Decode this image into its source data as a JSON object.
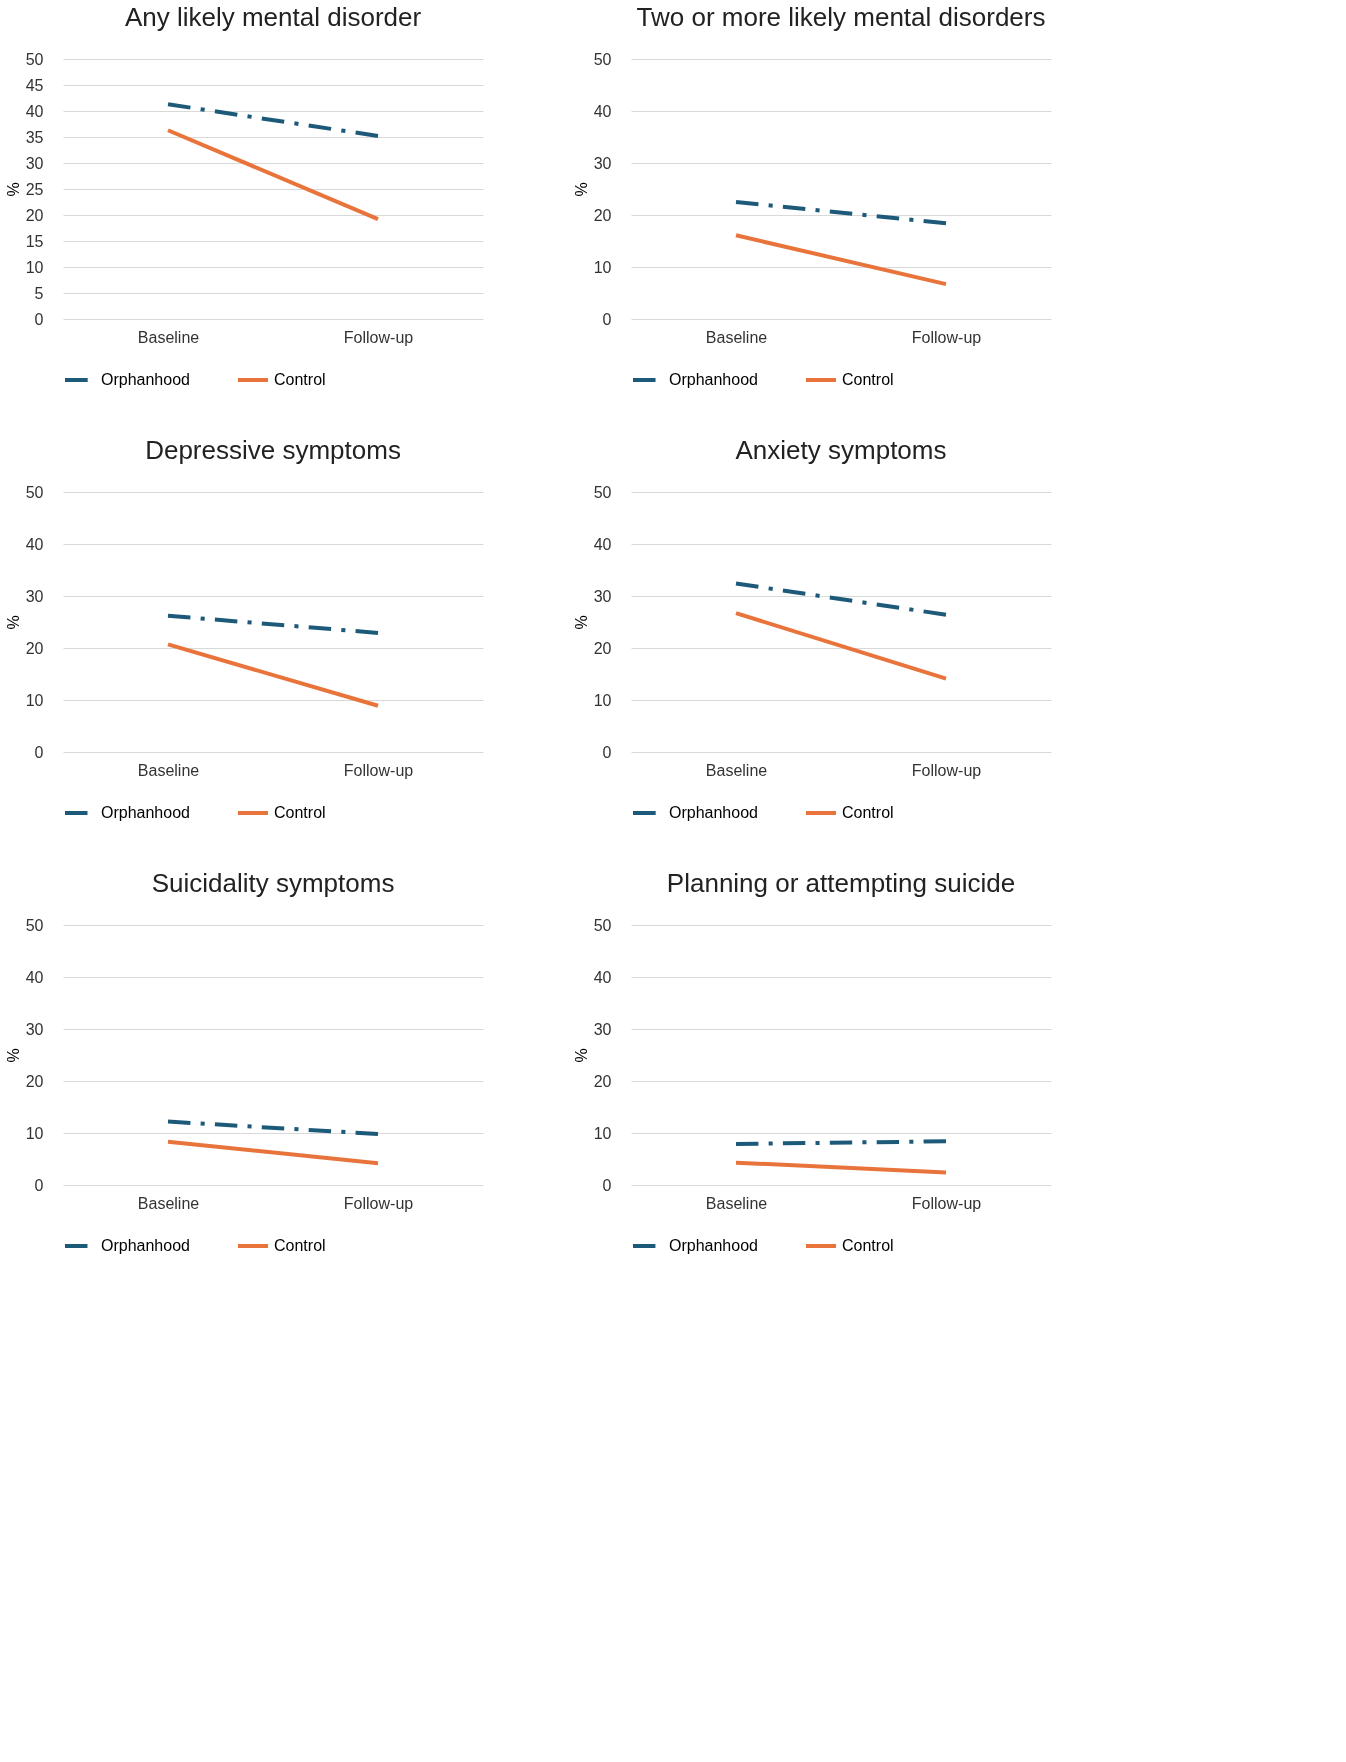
{
  "chart_data": [
    {
      "type": "line",
      "title": "Any likely mental disorder",
      "categories": [
        "Baseline",
        "Follow-up"
      ],
      "ylabel": "%",
      "ylim": [
        0,
        50
      ],
      "yticks": [
        0,
        5,
        10,
        15,
        20,
        25,
        30,
        35,
        40,
        45,
        50
      ],
      "grid": "y",
      "legend": "bottom",
      "series": [
        {
          "name": "Orphanhood",
          "color": "#1d5a79",
          "line_style": "dashed",
          "values": [
            41.3,
            35.2
          ]
        },
        {
          "name": "Control",
          "color": "#e8743b",
          "line_style": "solid",
          "values": [
            36.3,
            19.2
          ]
        }
      ]
    },
    {
      "type": "line",
      "title": "Two or more likely mental disorders",
      "categories": [
        "Baseline",
        "Follow-up"
      ],
      "ylabel": "%",
      "ylim": [
        0,
        50
      ],
      "yticks": [
        0,
        10,
        20,
        30,
        40,
        50
      ],
      "grid": "y",
      "legend": "bottom",
      "series": [
        {
          "name": "Orphanhood",
          "color": "#1d5a79",
          "line_style": "dashed",
          "values": [
            22.5,
            18.4
          ]
        },
        {
          "name": "Control",
          "color": "#e8743b",
          "line_style": "solid",
          "values": [
            16.1,
            6.7
          ]
        }
      ]
    },
    {
      "type": "line",
      "title": "Depressive symptoms",
      "categories": [
        "Baseline",
        "Follow-up"
      ],
      "ylabel": "%",
      "ylim": [
        0,
        50
      ],
      "yticks": [
        0,
        10,
        20,
        30,
        40,
        50
      ],
      "grid": "y",
      "legend": "bottom",
      "series": [
        {
          "name": "Orphanhood",
          "color": "#1d5a79",
          "line_style": "dashed",
          "values": [
            26.2,
            22.9
          ]
        },
        {
          "name": "Control",
          "color": "#e8743b",
          "line_style": "solid",
          "values": [
            20.7,
            8.9
          ]
        }
      ]
    },
    {
      "type": "line",
      "title": "Anxiety symptoms",
      "categories": [
        "Baseline",
        "Follow-up"
      ],
      "ylabel": "%",
      "ylim": [
        0,
        50
      ],
      "yticks": [
        0,
        10,
        20,
        30,
        40,
        50
      ],
      "grid": "y",
      "legend": "bottom",
      "series": [
        {
          "name": "Orphanhood",
          "color": "#1d5a79",
          "line_style": "dashed",
          "values": [
            32.4,
            26.4
          ]
        },
        {
          "name": "Control",
          "color": "#e8743b",
          "line_style": "solid",
          "values": [
            26.7,
            14.1
          ]
        }
      ]
    },
    {
      "type": "line",
      "title": "Suicidality symptoms",
      "categories": [
        "Baseline",
        "Follow-up"
      ],
      "ylabel": "%",
      "ylim": [
        0,
        50
      ],
      "yticks": [
        0,
        10,
        20,
        30,
        40,
        50
      ],
      "grid": "y",
      "legend": "bottom",
      "series": [
        {
          "name": "Orphanhood",
          "color": "#1d5a79",
          "line_style": "dashed",
          "values": [
            12.2,
            9.8
          ]
        },
        {
          "name": "Control",
          "color": "#e8743b",
          "line_style": "solid",
          "values": [
            8.3,
            4.2
          ]
        }
      ]
    },
    {
      "type": "line",
      "title": "Planning or attempting suicide",
      "categories": [
        "Baseline",
        "Follow-up"
      ],
      "ylabel": "%",
      "ylim": [
        0,
        50
      ],
      "yticks": [
        0,
        10,
        20,
        30,
        40,
        50
      ],
      "grid": "y",
      "legend": "bottom",
      "series": [
        {
          "name": "Orphanhood",
          "color": "#1d5a79",
          "line_style": "dashed",
          "values": [
            7.9,
            8.4
          ]
        },
        {
          "name": "Control",
          "color": "#e8743b",
          "line_style": "solid",
          "values": [
            4.3,
            2.4
          ]
        }
      ]
    }
  ]
}
